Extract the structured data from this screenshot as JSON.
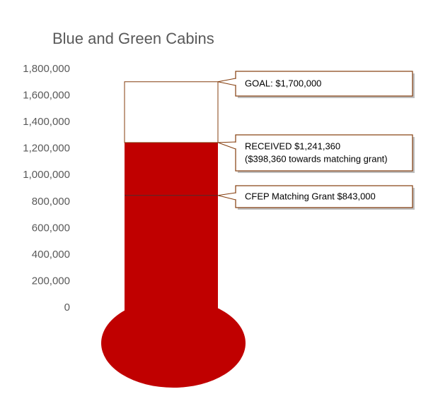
{
  "chart_data": {
    "type": "bar",
    "title": "Blue and Green Cabins",
    "xlabel": "",
    "ylabel": "",
    "ylim": [
      0,
      1800000
    ],
    "yticks": [
      0,
      200000,
      400000,
      600000,
      800000,
      1000000,
      1200000,
      1400000,
      1600000,
      1800000
    ],
    "ytick_labels": [
      "0",
      "200,000",
      "400,000",
      "600,000",
      "800,000",
      "1,000,000",
      "1,200,000",
      "1,400,000",
      "1,600,000",
      "1,800,000"
    ],
    "grid": false,
    "style": "thermometer",
    "series": [
      {
        "name": "",
        "key": "goal",
        "value": 1700000
      },
      {
        "name": "",
        "key": "received",
        "value": 1241360
      },
      {
        "name": "",
        "key": "matching",
        "value": 843000
      }
    ],
    "annotations": [
      {
        "key": "goal",
        "lines": [
          "GOAL: $1,700,000"
        ]
      },
      {
        "key": "received",
        "lines": [
          "RECEIVED $1,241,360",
          " ($398,360 towards matching grant)"
        ]
      },
      {
        "key": "matching",
        "lines": [
          "CFEP Matching Grant $843,000"
        ]
      }
    ],
    "colors": {
      "fill": "#c00000",
      "outline": "#843c0c",
      "marker": "#5a2a2a",
      "text": "#595959"
    }
  }
}
